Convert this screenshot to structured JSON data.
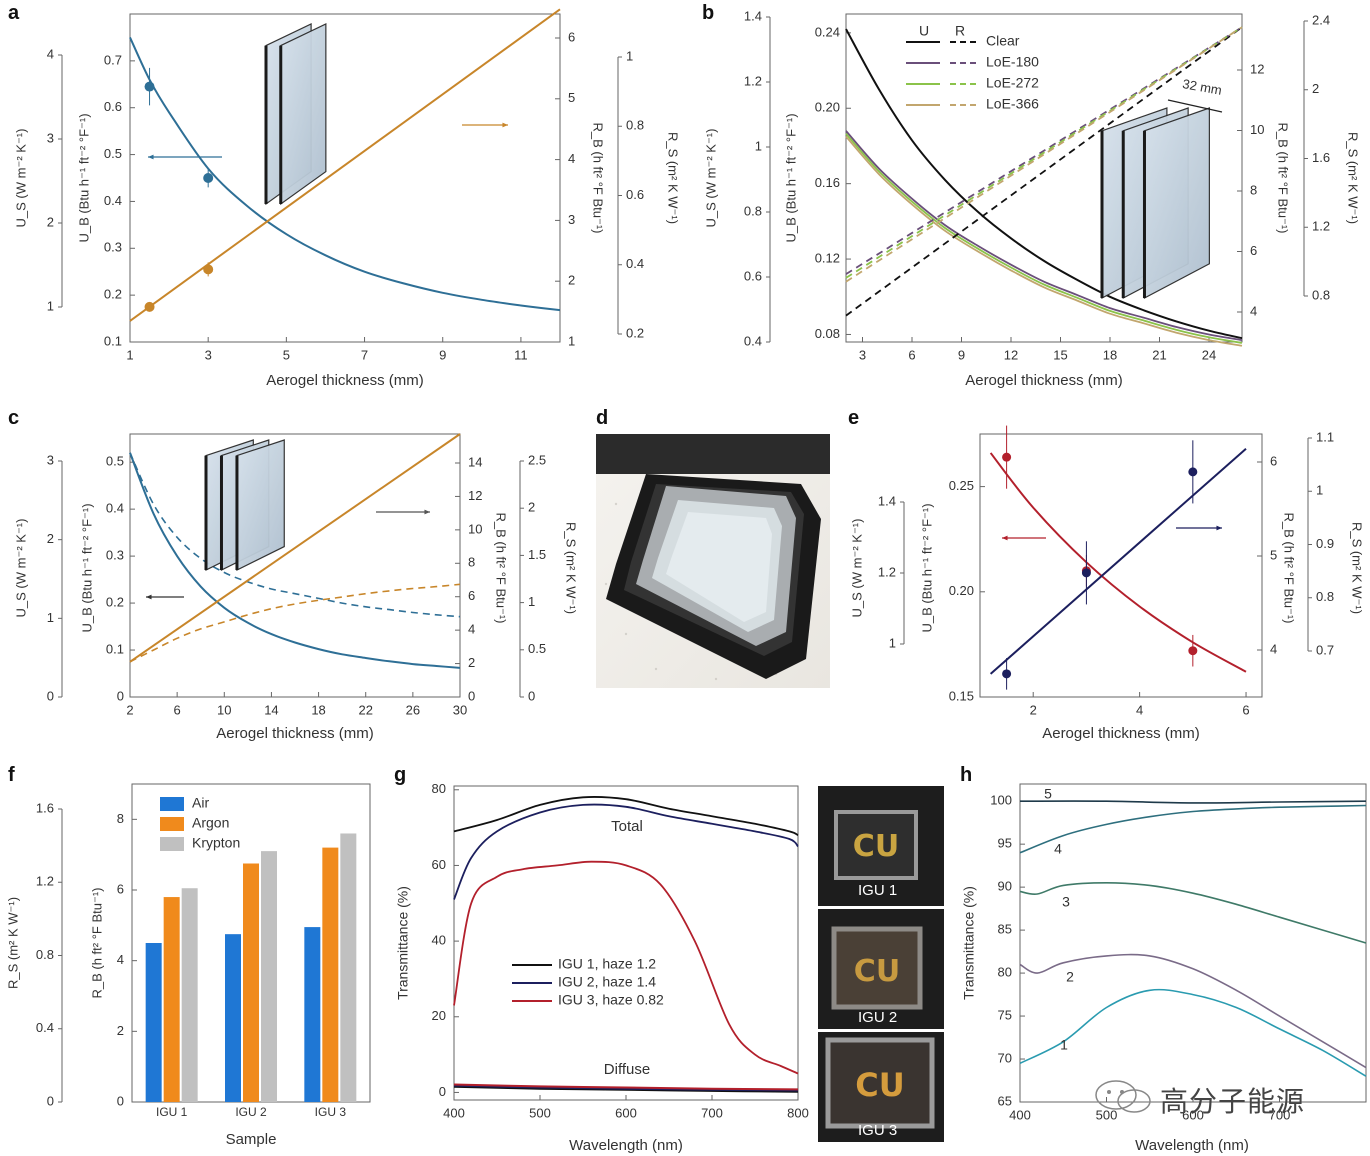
{
  "panels": {
    "a": "a",
    "b": "b",
    "c": "c",
    "d": "d",
    "e": "e",
    "f": "f",
    "g": "g",
    "h": "h"
  },
  "colors": {
    "blue": "#2e6f96",
    "orange": "#c8862a",
    "black": "#111111",
    "navy": "#1c1f5e",
    "red": "#b3202c",
    "air_bar": "#1f77d4",
    "argon_bar": "#f08a1c",
    "krypton_bar": "#c0c0c0",
    "loe180": "#6a4f7a",
    "loe272": "#8bc34a",
    "loe366": "#c2a66e"
  },
  "watermark": {
    "text": "高分子能源"
  },
  "photos": {
    "igu1": "IGU 1",
    "igu2": "IGU 2",
    "igu3": "IGU 3"
  },
  "chart_data": [
    {
      "panel": "a",
      "type": "line",
      "xlabel": "Aerogel thickness (mm)",
      "x_ticks": [
        1,
        3,
        5,
        7,
        9,
        11
      ],
      "xlim": [
        1,
        12
      ],
      "axes": {
        "us": {
          "label": "U_S (W m⁻² K⁻¹)",
          "ticks": [
            1,
            2,
            3,
            4
          ]
        },
        "ub": {
          "label": "U_B (Btu h⁻¹ ft⁻² °F⁻¹)",
          "ticks": [
            0.1,
            0.2,
            0.3,
            0.4,
            0.5,
            0.6,
            0.7
          ],
          "ylim": [
            0.1,
            0.8
          ]
        },
        "rb": {
          "label": "R_B (h ft² °F Btu⁻¹)",
          "ticks": [
            1,
            2,
            3,
            4,
            5,
            6
          ]
        },
        "rs": {
          "label": "R_S (m² K W⁻¹)",
          "ticks": [
            0.2,
            0.4,
            0.6,
            0.8,
            1.0
          ]
        }
      },
      "series": [
        {
          "x": [
            1,
            1.5,
            2,
            3,
            4,
            5,
            6,
            7,
            8,
            9,
            10,
            11,
            12
          ],
          "y": [
            0.75,
            0.66,
            0.59,
            0.47,
            0.39,
            0.33,
            0.285,
            0.25,
            0.225,
            0.205,
            0.19,
            0.178,
            0.168
          ]
        },
        {
          "x": [
            1,
            12
          ],
          "y": [
            0.145,
            0.81
          ]
        }
      ],
      "points": [
        {
          "x": 1.5,
          "y": 0.645,
          "err": 0.04
        },
        {
          "x": 3,
          "y": 0.45,
          "err": 0.02
        },
        {
          "x": 1.5,
          "y": 0.175,
          "err": 0.01
        },
        {
          "x": 3,
          "y": 0.255,
          "err": 0.015
        }
      ]
    },
    {
      "panel": "b",
      "type": "line",
      "xlabel": "Aerogel thickness (mm)",
      "x_ticks": [
        3,
        6,
        9,
        12,
        15,
        18,
        21,
        24
      ],
      "xlim": [
        2,
        26
      ],
      "axes": {
        "us": {
          "label": "U_S (W m⁻² K⁻¹)",
          "ticks": [
            0.4,
            0.6,
            0.8,
            1.0,
            1.2,
            1.4
          ]
        },
        "ub": {
          "label": "U_B (Btu h⁻¹ ft⁻² °F⁻¹)",
          "ticks": [
            0.08,
            0.12,
            0.16,
            0.2,
            0.24
          ],
          "ylim": [
            0.076,
            0.25
          ]
        },
        "rb": {
          "label": "R_B (h ft² °F Btu⁻¹)",
          "ticks": [
            4,
            6,
            8,
            10,
            12
          ]
        },
        "rs": {
          "label": "R_S (m² K W⁻¹)",
          "ticks": [
            0.8,
            1.2,
            1.6,
            2.0,
            2.4
          ]
        }
      },
      "legend": {
        "headers": [
          "U",
          "R"
        ],
        "entries": [
          "Clear",
          "LoE-180",
          "LoE-272",
          "LoE-366"
        ]
      },
      "annotation": "32 mm",
      "series": [
        {
          "name": "Clear",
          "kind": "U",
          "x": [
            2,
            4,
            6,
            8,
            10,
            12,
            14,
            16,
            18,
            20,
            22,
            24,
            26
          ],
          "y": [
            0.242,
            0.21,
            0.183,
            0.162,
            0.145,
            0.131,
            0.119,
            0.109,
            0.1,
            0.093,
            0.087,
            0.082,
            0.078
          ]
        },
        {
          "name": "LoE-180",
          "kind": "U",
          "x": [
            2,
            4,
            6,
            8,
            10,
            12,
            14,
            16,
            18,
            20,
            22,
            24,
            26
          ],
          "y": [
            0.188,
            0.168,
            0.152,
            0.138,
            0.127,
            0.117,
            0.108,
            0.101,
            0.094,
            0.089,
            0.084,
            0.08,
            0.077
          ]
        },
        {
          "name": "Clear",
          "kind": "R",
          "x": [
            2,
            26
          ],
          "y": [
            0.09,
            0.243
          ]
        },
        {
          "name": "LoE-180",
          "kind": "R",
          "x": [
            2,
            26
          ],
          "y": [
            0.112,
            0.243
          ]
        }
      ]
    },
    {
      "panel": "c",
      "type": "line",
      "xlabel": "Aerogel thickness (mm)",
      "x_ticks": [
        2,
        6,
        10,
        14,
        18,
        22,
        26,
        30
      ],
      "xlim": [
        2,
        30
      ],
      "axes": {
        "us": {
          "label": "U_S (W m⁻² K⁻¹)",
          "ticks": [
            0,
            1,
            2,
            3
          ]
        },
        "ub": {
          "label": "U_B (Btu h⁻¹ ft⁻² °F⁻¹)",
          "ticks": [
            0,
            0.1,
            0.2,
            0.3,
            0.4,
            0.5
          ],
          "ylim": [
            0,
            0.56
          ]
        },
        "rb": {
          "label": "R_B (h ft² °F Btu⁻¹)",
          "ticks": [
            0,
            2,
            4,
            6,
            8,
            10,
            12,
            14
          ]
        },
        "rs": {
          "label": "R_S (m² K W⁻¹)",
          "ticks": [
            0,
            0.5,
            1.0,
            1.5,
            2.0,
            2.5
          ]
        }
      },
      "series": [
        {
          "kind": "U solid",
          "x": [
            2,
            4,
            6,
            8,
            10,
            12,
            14,
            16,
            18,
            20,
            22,
            24,
            26,
            28,
            30
          ],
          "y": [
            0.52,
            0.39,
            0.3,
            0.235,
            0.19,
            0.158,
            0.134,
            0.116,
            0.102,
            0.091,
            0.083,
            0.076,
            0.07,
            0.066,
            0.062
          ]
        },
        {
          "kind": "U dashed",
          "x": [
            2,
            4,
            6,
            8,
            10,
            12,
            14,
            16,
            18,
            20,
            22,
            24,
            26,
            28,
            30
          ],
          "y": [
            0.52,
            0.41,
            0.34,
            0.295,
            0.265,
            0.245,
            0.23,
            0.22,
            0.21,
            0.2,
            0.192,
            0.186,
            0.18,
            0.175,
            0.171
          ]
        },
        {
          "kind": "R solid",
          "x": [
            2,
            30
          ],
          "y": [
            0.075,
            0.56
          ]
        },
        {
          "kind": "R dashed",
          "x": [
            2,
            4,
            6,
            8,
            10,
            12,
            14,
            16,
            18,
            20,
            22,
            24,
            26,
            28,
            30
          ],
          "y": [
            0.075,
            0.1,
            0.125,
            0.145,
            0.16,
            0.175,
            0.188,
            0.198,
            0.206,
            0.213,
            0.22,
            0.226,
            0.231,
            0.235,
            0.24
          ]
        }
      ]
    },
    {
      "panel": "e",
      "type": "line",
      "xlabel": "Aerogel thickness (mm)",
      "x_ticks": [
        2,
        4,
        6
      ],
      "xlim": [
        1,
        6.3
      ],
      "axes": {
        "us": {
          "label": "U_S (W m⁻² K⁻¹)",
          "ticks": [
            1.0,
            1.2,
            1.4
          ]
        },
        "ub": {
          "label": "U_B (Btu h⁻¹ ft⁻² °F⁻¹)",
          "ticks": [
            0.15,
            0.2,
            0.25
          ],
          "ylim": [
            0.15,
            0.275
          ]
        },
        "rb": {
          "label": "R_B (h ft² °F Btu⁻¹)",
          "ticks": [
            4,
            5,
            6
          ]
        },
        "rs": {
          "label": "R_S (m² K W⁻¹)",
          "ticks": [
            0.7,
            0.8,
            0.9,
            1.0,
            1.1
          ]
        }
      },
      "series": [
        {
          "kind": "U",
          "x": [
            1.2,
            2,
            3,
            4,
            5,
            6
          ],
          "y": [
            0.266,
            0.24,
            0.214,
            0.193,
            0.176,
            0.162
          ]
        },
        {
          "kind": "R",
          "x": [
            1.2,
            6
          ],
          "y": [
            0.161,
            0.268
          ]
        }
      ],
      "points": [
        {
          "x": 1.5,
          "y": 0.264,
          "err": 0.01,
          "color": "red"
        },
        {
          "x": 3,
          "y": 0.21,
          "err": 0.005,
          "color": "red"
        },
        {
          "x": 5,
          "y": 0.172,
          "err": 0.005,
          "color": "red"
        },
        {
          "x": 1.5,
          "y": 0.161,
          "err": 0.005,
          "color": "navy"
        },
        {
          "x": 3,
          "y": 0.209,
          "err": 0.01,
          "color": "navy"
        },
        {
          "x": 5,
          "y": 0.257,
          "err": 0.01,
          "color": "navy"
        }
      ]
    },
    {
      "panel": "f",
      "type": "bar",
      "xlabel": "Sample",
      "ylabel": "R_B (h ft² °F Btu⁻¹)",
      "ylabel2": "R_S (m² K W⁻¹)",
      "categories": [
        "IGU 1",
        "IGU 2",
        "IGU 3"
      ],
      "ylim": [
        0,
        9
      ],
      "y_ticks": [
        0,
        2,
        4,
        6,
        8
      ],
      "y2_ticks": [
        0,
        0.4,
        0.8,
        1.2,
        1.6
      ],
      "series": [
        {
          "name": "Air",
          "values": [
            4.5,
            4.75,
            4.95
          ]
        },
        {
          "name": "Argon",
          "values": [
            5.8,
            6.75,
            7.2
          ]
        },
        {
          "name": "Krypton",
          "values": [
            6.05,
            7.1,
            7.6
          ]
        }
      ]
    },
    {
      "panel": "g",
      "type": "line",
      "xlabel": "Wavelength (nm)",
      "ylabel": "Transmittance (%)",
      "xlim": [
        400,
        800
      ],
      "ylim": [
        -2,
        81
      ],
      "x_ticks": [
        400,
        500,
        600,
        700,
        800
      ],
      "y_ticks": [
        0,
        20,
        40,
        60,
        80
      ],
      "labels": [
        "Total",
        "Diffuse"
      ],
      "series": [
        {
          "name": "IGU 1, haze 1.2",
          "x": [
            400,
            450,
            500,
            550,
            600,
            650,
            700,
            750,
            790,
            800
          ],
          "y": [
            69,
            72,
            76,
            78,
            77.5,
            75,
            73,
            71,
            69,
            68
          ]
        },
        {
          "name": "IGU 2, haze 1.4",
          "x": [
            400,
            420,
            450,
            500,
            550,
            600,
            650,
            700,
            750,
            790,
            800
          ],
          "y": [
            51,
            62,
            69,
            74,
            76,
            75.5,
            73,
            71,
            69,
            67,
            65
          ]
        },
        {
          "name": "IGU 3, haze 0.82",
          "x": [
            400,
            420,
            450,
            480,
            520,
            560,
            600,
            640,
            680,
            720,
            750,
            780,
            800
          ],
          "y": [
            23,
            50,
            57,
            59,
            60,
            61,
            60,
            55,
            40,
            18,
            10,
            7,
            5
          ]
        },
        {
          "name": "diffuse",
          "x": [
            400,
            500,
            600,
            700,
            800
          ],
          "y": [
            1.5,
            1.0,
            0.7,
            0.4,
            0.2
          ]
        }
      ]
    },
    {
      "panel": "h",
      "type": "line",
      "xlabel": "Wavelength (nm)",
      "ylabel": "Transmittance (%)",
      "xlim": [
        400,
        800
      ],
      "ylim": [
        65,
        102
      ],
      "x_ticks": [
        400,
        500,
        600,
        700
      ],
      "y_ticks": [
        65,
        70,
        75,
        80,
        85,
        90,
        95,
        100
      ],
      "series": [
        {
          "name": "5",
          "x": [
            400,
            500,
            600,
            700,
            800
          ],
          "y": [
            100,
            100,
            99.8,
            99.9,
            100
          ]
        },
        {
          "name": "4",
          "x": [
            400,
            450,
            500,
            550,
            600,
            650,
            700,
            750,
            800
          ],
          "y": [
            94,
            96,
            97.3,
            98.2,
            98.8,
            99.1,
            99.3,
            99.4,
            99.5
          ]
        },
        {
          "name": "3",
          "x": [
            400,
            420,
            450,
            500,
            550,
            600,
            650,
            700,
            750,
            800
          ],
          "y": [
            89.5,
            89.2,
            90.2,
            90.5,
            90.2,
            89.3,
            88,
            86.5,
            85,
            83.5
          ]
        },
        {
          "name": "2",
          "x": [
            400,
            420,
            450,
            500,
            550,
            600,
            650,
            700,
            750,
            800
          ],
          "y": [
            81,
            80,
            81.2,
            82,
            82,
            80.5,
            78,
            75,
            72,
            69
          ]
        },
        {
          "name": "1",
          "x": [
            400,
            450,
            500,
            550,
            600,
            650,
            700,
            750,
            800
          ],
          "y": [
            69.5,
            72,
            76,
            78,
            77.5,
            76,
            73.5,
            71,
            68
          ]
        }
      ]
    }
  ]
}
